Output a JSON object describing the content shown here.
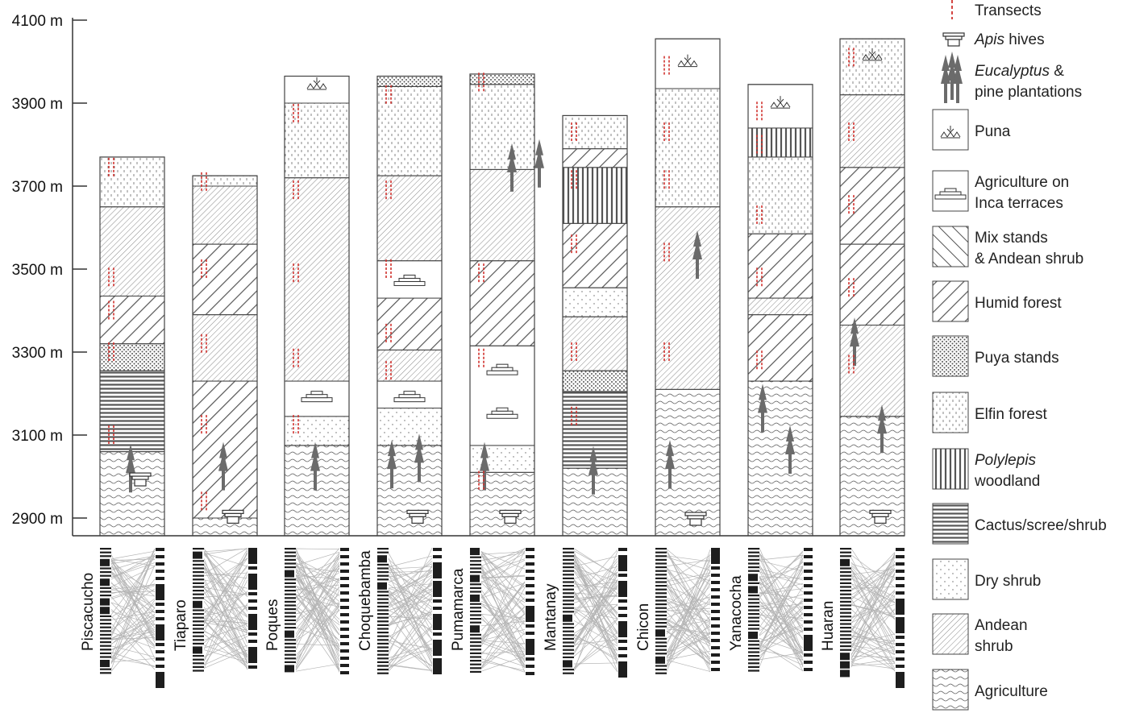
{
  "colors": {
    "outline": "#444444",
    "hatch": "#555555",
    "transect": "#d0312d",
    "tree": "#6b6b6b",
    "web_gray": "#b4b4b4",
    "bar_black": "#1e1e1e"
  },
  "axis": {
    "ylim": [
      2855,
      4100
    ],
    "ticks": [
      {
        "value": 4100,
        "label": "4100 m"
      },
      {
        "value": 3900,
        "label": "3900 m"
      },
      {
        "value": 3700,
        "label": "3700 m"
      },
      {
        "value": 3500,
        "label": "3500 m"
      },
      {
        "value": 3300,
        "label": "3300 m"
      },
      {
        "value": 3100,
        "label": "3100 m"
      },
      {
        "value": 2900,
        "label": "2900 m"
      }
    ]
  },
  "legend": [
    {
      "key": "transects",
      "text": "Transects",
      "icon": "transect-icon"
    },
    {
      "key": "apis",
      "italic": "Apis",
      "text": " hives",
      "icon": "apis-hive-icon"
    },
    {
      "key": "eucalyptus",
      "italic": "Eucalyptus",
      "text": " &",
      "text2": "pine plantations",
      "icon": "tree-icon"
    },
    {
      "key": "puna",
      "text": "Puna",
      "pattern": "puna"
    },
    {
      "key": "inca",
      "text": "Agriculture on",
      "text2": "Inca terraces",
      "pattern": "inca"
    },
    {
      "key": "mix",
      "text": "Mix stands",
      "text2": "& Andean shrub",
      "pattern": "mix"
    },
    {
      "key": "humid",
      "text": "Humid forest",
      "pattern": "humid"
    },
    {
      "key": "puya",
      "text": "Puya stands",
      "pattern": "puya"
    },
    {
      "key": "elfin",
      "text": "Elfin forest",
      "pattern": "elfin"
    },
    {
      "key": "polylepis",
      "italic": "Polylepis",
      "text": "",
      "text2": "woodland",
      "pattern": "polylepis"
    },
    {
      "key": "cactus",
      "text": "Cactus/scree/shrub",
      "pattern": "cactus"
    },
    {
      "key": "dry",
      "text": "Dry shrub",
      "pattern": "dry"
    },
    {
      "key": "andean",
      "text": "Andean",
      "text2": "shrub",
      "pattern": "andean"
    },
    {
      "key": "agri",
      "text": "Agriculture",
      "pattern": "agri"
    }
  ],
  "chart_data": {
    "type": "stacked-column",
    "unit": "m",
    "sites": [
      {
        "name": "Piscacucho",
        "segments": [
          [
            "agri",
            2855,
            3060
          ],
          [
            "cactus",
            3060,
            3255
          ],
          [
            "puya",
            3255,
            3320
          ],
          [
            "humid",
            3320,
            3435
          ],
          [
            "andean",
            3435,
            3650
          ],
          [
            "elfin",
            3650,
            3770
          ]
        ],
        "transects": [
          3100,
          3300,
          3400,
          3480,
          3745
        ],
        "trees": [
          2985
        ],
        "hives": [
          2995
        ],
        "icons": []
      },
      {
        "name": "Tiaparo",
        "segments": [
          [
            "agri",
            2855,
            2900
          ],
          [
            "humid",
            2900,
            3230
          ],
          [
            "andean",
            3230,
            3390
          ],
          [
            "humid",
            3390,
            3560
          ],
          [
            "andean",
            3560,
            3700
          ],
          [
            "elfin",
            3700,
            3725
          ]
        ],
        "transects": [
          2940,
          3125,
          3320,
          3500,
          3710
        ],
        "trees": [
          2990
        ],
        "hives": [
          2905
        ],
        "icons": []
      },
      {
        "name": "Poques",
        "segments": [
          [
            "agri",
            2855,
            3075
          ],
          [
            "dry",
            3075,
            3145
          ],
          [
            "inca",
            3145,
            3230
          ],
          [
            "andean",
            3230,
            3720
          ],
          [
            "elfin",
            3720,
            3900
          ],
          [
            "puna",
            3900,
            3965
          ]
        ],
        "transects": [
          3125,
          3285,
          3490,
          3690,
          3875
        ],
        "trees": [
          2990
        ],
        "hives": [],
        "icons": [
          [
            "inca",
            3190
          ],
          [
            "puna",
            3935
          ]
        ]
      },
      {
        "name": "Choquebamba",
        "segments": [
          [
            "agri",
            2855,
            3075
          ],
          [
            "dry",
            3075,
            3165
          ],
          [
            "inca",
            3165,
            3230
          ],
          [
            "andean",
            3230,
            3305
          ],
          [
            "humid",
            3305,
            3430
          ],
          [
            "inca",
            3430,
            3520
          ],
          [
            "andean",
            3520,
            3725
          ],
          [
            "elfin",
            3725,
            3940
          ],
          [
            "puya",
            3940,
            3965
          ]
        ],
        "transects": [
          3255,
          3345,
          3500,
          3690,
          3920
        ],
        "trees": [
          2995,
          3010
        ],
        "hives": [
          2905
        ],
        "icons": [
          [
            "inca",
            3190
          ],
          [
            "inca",
            3470
          ]
        ]
      },
      {
        "name": "Pumamarca",
        "segments": [
          [
            "agri",
            2855,
            3010
          ],
          [
            "dry",
            3010,
            3075
          ],
          [
            "inca",
            3075,
            3315
          ],
          [
            "humid",
            3315,
            3520
          ],
          [
            "andean",
            3520,
            3740
          ],
          [
            "elfin",
            3740,
            3945
          ],
          [
            "puya",
            3945,
            3970
          ]
        ],
        "transects": [
          2990,
          3285,
          3490,
          3950
        ],
        "trees": [
          2990,
          3710,
          3720
        ],
        "hives": [
          2905
        ],
        "icons": [
          [
            "inca",
            3150
          ],
          [
            "inca",
            3255
          ]
        ]
      },
      {
        "name": "Mantanay",
        "segments": [
          [
            "agri",
            2855,
            3020
          ],
          [
            "cactus",
            3020,
            3205
          ],
          [
            "puya",
            3205,
            3255
          ],
          [
            "andean",
            3255,
            3385
          ],
          [
            "dry",
            3385,
            3455
          ],
          [
            "humid",
            3455,
            3610
          ],
          [
            "polylepis",
            3610,
            3745
          ],
          [
            "humid",
            3745,
            3790
          ],
          [
            "elfin",
            3790,
            3870
          ]
        ],
        "transects": [
          3145,
          3300,
          3560,
          3715,
          3830
        ],
        "trees": [
          2980
        ],
        "hives": [],
        "icons": []
      },
      {
        "name": "Chicon",
        "segments": [
          [
            "agri",
            2855,
            3210
          ],
          [
            "andean",
            3210,
            3650
          ],
          [
            "elfin",
            3650,
            3935
          ],
          [
            "puna",
            3935,
            4055
          ]
        ],
        "transects": [
          3300,
          3540,
          3715,
          3830,
          3990
        ],
        "trees": [
          2995,
          3500
        ],
        "hives": [
          2900
        ],
        "icons": [
          [
            "puna",
            3990
          ]
        ]
      },
      {
        "name": "Yanacocha",
        "segments": [
          [
            "agri",
            2855,
            3230
          ],
          [
            "humid",
            3230,
            3390
          ],
          [
            "andean",
            3390,
            3430
          ],
          [
            "humid",
            3430,
            3585
          ],
          [
            "elfin",
            3585,
            3770
          ],
          [
            "polylepis",
            3770,
            3840
          ],
          [
            "puna",
            3840,
            3945
          ]
        ],
        "transects": [
          3280,
          3480,
          3630,
          3800,
          3880
        ],
        "trees": [
          3130,
          3030
        ],
        "hives": [],
        "icons": [
          [
            "puna",
            3890
          ]
        ]
      },
      {
        "name": "Huaran",
        "segments": [
          [
            "agri",
            2855,
            3145
          ],
          [
            "andean",
            3145,
            3365
          ],
          [
            "humid",
            3365,
            3560
          ],
          [
            "humid",
            3560,
            3745
          ],
          [
            "andean",
            3745,
            3920
          ],
          [
            "elfin",
            3920,
            4055
          ]
        ],
        "transects": [
          3270,
          3455,
          3655,
          3830,
          4010
        ],
        "trees": [
          3290,
          3080
        ],
        "hives": [
          2905
        ],
        "icons": [
          [
            "puna",
            4005
          ]
        ]
      }
    ]
  }
}
